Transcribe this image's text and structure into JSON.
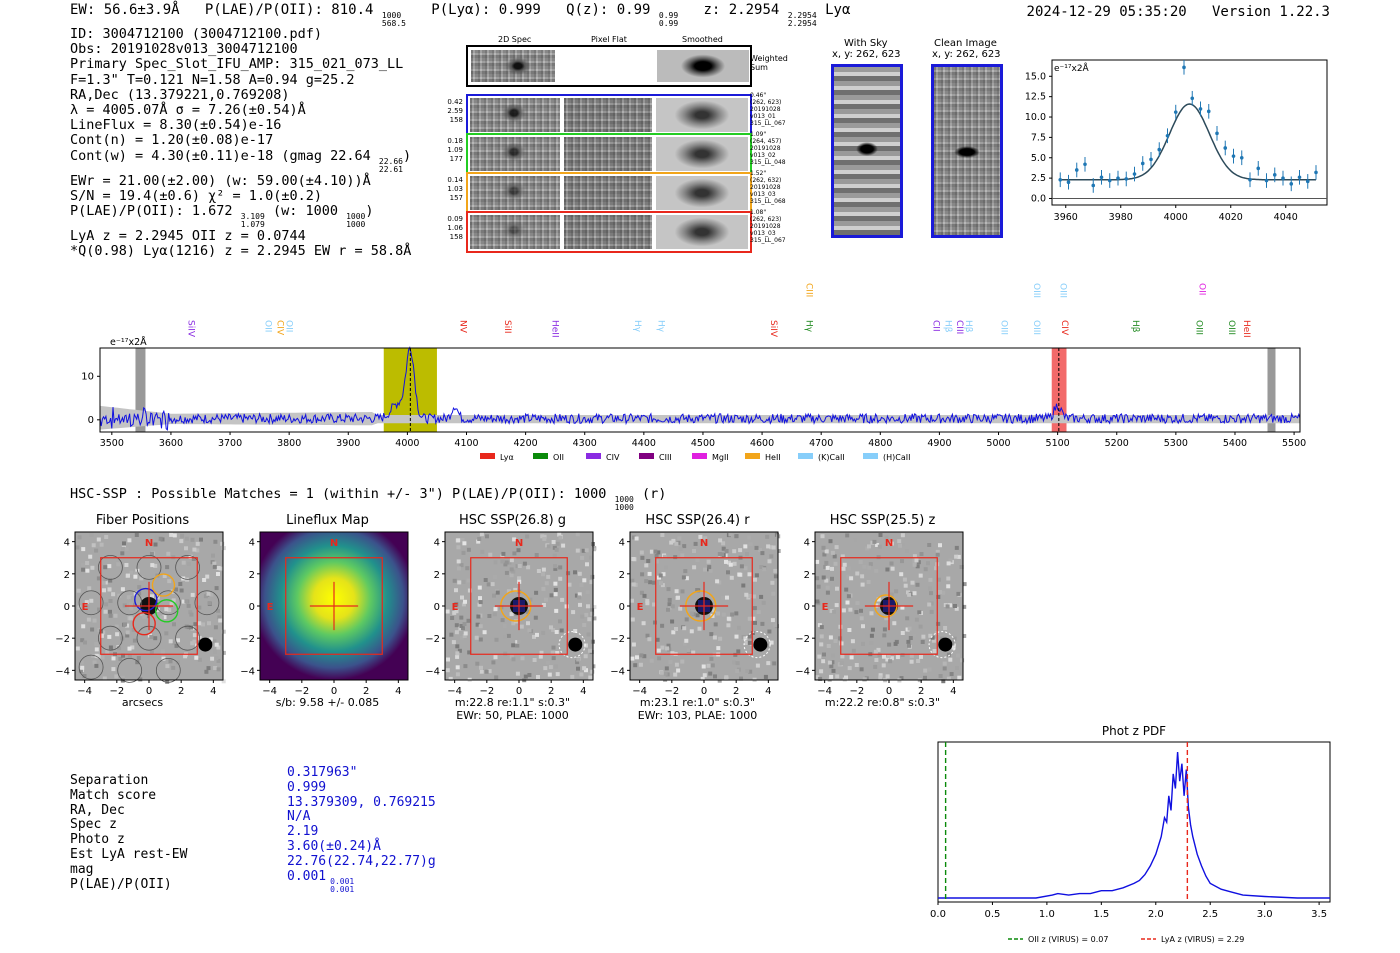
{
  "header": {
    "ew_text": "EW: 56.6±3.9Å",
    "plae_label": "P(LAE)/P(OII): 810.4",
    "plae_hi": "1000",
    "plae_lo": "568.5",
    "plya_text": "P(Lyα): 0.999",
    "qz_label": "Q(z): 0.99",
    "qz_hi": "0.99",
    "qz_lo": "0.99",
    "z_label": "z: 2.2954",
    "z_hi": "2.2954",
    "z_lo": "2.2954",
    "z_line": "Lyα",
    "datetime": "2024-12-29 05:35:20",
    "version": "Version 1.22.3"
  },
  "info": {
    "id": "ID: 3004712100 (3004712100.pdf)",
    "obs": "Obs: 20191028v013_3004712100",
    "primary": "Primary Spec_Slot_IFU_AMP: 315_021_073_LL",
    "params": "F=1.3\"  T=0.121  N=1.58  A=0.94  g=25.2",
    "radec": "RA,Dec (13.379221,0.769208)",
    "lambda": "λ = 4005.07Å  σ = 7.26(±0.54)Å",
    "lineflux": "LineFlux = 8.30(±0.54)e-16",
    "contn": "Cont(n) = 1.20(±0.08)e-17",
    "contw": "Cont(w) = 4.30(±0.11)e-18 (gmag 22.64",
    "contw_hi": "22.66",
    "contw_lo": "22.61",
    "contw_end": ")",
    "ewr": "EWr = 21.00(±2.00) (w: 59.00(±4.10))Å",
    "sn": "S/N = 19.4(±0.6)  χ² = 1.0(±0.2)",
    "plae": "P(LAE)/P(OII): 1.672",
    "plae_hi": "3.109",
    "plae_lo": "1.079",
    "plae_mid": "(w: 1000",
    "plae_w_hi": "1000",
    "plae_w_lo": "1000",
    "plae_end": ")",
    "lya": "LyA z = 2.2945   OII z = 0.0744",
    "q": "*Q(0.98) Lyα(1216) z = 2.2945   EW r = 58.8Å"
  },
  "spec2d": {
    "col_2d": "2D Spec",
    "col_flat": "Pixel Flat",
    "col_smooth": "Smoothed",
    "weighted": "Weighted Sum",
    "rows": [
      {
        "left": [
          "0.42",
          "2.59",
          "158"
        ],
        "right": [
          "0.46\"",
          "(262, 623)",
          "20191028",
          "v013_01",
          "315_LL_067"
        ],
        "color": "#1a1ad8"
      },
      {
        "left": [
          "0.18",
          "1.09",
          "177"
        ],
        "right": [
          "1.09\"",
          "(264, 457)",
          "20191028",
          "v013_02",
          "315_LL_048"
        ],
        "color": "#22cc22"
      },
      {
        "left": [
          "0.14",
          "1.03",
          "157"
        ],
        "right": [
          "1.52\"",
          "(262, 632)",
          "20191028",
          "v013_03",
          "315_LL_068"
        ],
        "color": "#f2a51a"
      },
      {
        "left": [
          "0.09",
          "1.06",
          "158"
        ],
        "right": [
          "1.08\"",
          "(262, 623)",
          "20191028",
          "v013_03",
          "315_LL_067"
        ],
        "color": "#e8281c"
      }
    ]
  },
  "cutouts": {
    "with_sky": "With Sky",
    "with_sky_xy": "x, y: 262, 623",
    "clean": "Clean Image",
    "clean_xy": "x, y: 262, 623"
  },
  "zoom_plot": {
    "unit": "e⁻¹⁷x2Å",
    "xticks": [
      "3960",
      "3980",
      "4000",
      "4020",
      "4040"
    ],
    "yticks": [
      "15.0",
      "12.5",
      "10.0",
      "7.5",
      "5.0",
      "2.5",
      "0.0"
    ],
    "xrange": [
      3955,
      4055
    ],
    "yrange": [
      -0.8,
      17
    ],
    "points_x": [
      3958,
      3961,
      3964,
      3967,
      3970,
      3973,
      3976,
      3979,
      3982,
      3985,
      3988,
      3991,
      3994,
      3997,
      4000,
      4003,
      4006,
      4009,
      4012,
      4015,
      4018,
      4021,
      4024,
      4027,
      4030,
      4033,
      4036,
      4039,
      4042,
      4045,
      4048,
      4051
    ],
    "points_y": [
      2.3,
      2.0,
      3.5,
      4.2,
      1.6,
      2.6,
      2.2,
      2.5,
      2.4,
      3.0,
      4.3,
      4.8,
      6.0,
      7.7,
      10.6,
      16.1,
      12.3,
      11.0,
      10.7,
      8.0,
      6.2,
      5.2,
      5.0,
      2.3,
      3.7,
      2.2,
      2.9,
      2.5,
      1.8,
      2.6,
      2.1,
      3.2
    ],
    "fit": {
      "center": 4005,
      "sigma": 7.26,
      "amp": 9.3,
      "base": 2.3
    }
  },
  "wide_spec": {
    "unit": "e⁻¹⁷x2Å",
    "xticks": [
      "3500",
      "3600",
      "3700",
      "3800",
      "3900",
      "4000",
      "4100",
      "4200",
      "4300",
      "4400",
      "4500",
      "4600",
      "4700",
      "4800",
      "4900",
      "5000",
      "5100",
      "5200",
      "5300",
      "5400",
      "5500"
    ],
    "yticks": [
      "10",
      "0"
    ],
    "xrange": [
      3480,
      5510
    ],
    "yrange": [
      -2.8,
      16.5
    ],
    "highlight": [
      3960,
      4050
    ],
    "ciii_hl": [
      5090,
      5115
    ],
    "lines": [
      {
        "name": "SiIV",
        "wave": 3625,
        "color": "#8a2be2",
        "row": 1
      },
      {
        "name": "OII",
        "wave": 3755,
        "color": "#87cefa",
        "row": 1
      },
      {
        "name": "CIV",
        "wave": 3775,
        "color": "#f2a51a",
        "row": 1
      },
      {
        "name": "OII",
        "wave": 3790,
        "color": "#87cefa",
        "row": 1
      },
      {
        "name": "NV",
        "wave": 4085,
        "color": "#e8281c",
        "row": 1
      },
      {
        "name": "SiII",
        "wave": 4160,
        "color": "#e8281c",
        "row": 1
      },
      {
        "name": "HeII",
        "wave": 4240,
        "color": "#8a2be2",
        "row": 1
      },
      {
        "name": "Hγ",
        "wave": 4380,
        "color": "#87cefa",
        "row": 1
      },
      {
        "name": "Hγ",
        "wave": 4420,
        "color": "#87cefa",
        "row": 1
      },
      {
        "name": "SiIV",
        "wave": 4610,
        "color": "#e8281c",
        "row": 1
      },
      {
        "name": "Hγ",
        "wave": 4670,
        "color": "#228b22",
        "row": 1
      },
      {
        "name": "CIII",
        "wave": 4670,
        "color": "#f2a51a",
        "row": 0
      },
      {
        "name": "CII",
        "wave": 4885,
        "color": "#8a2be2",
        "row": 1
      },
      {
        "name": "Hβ",
        "wave": 4905,
        "color": "#87cefa",
        "row": 1
      },
      {
        "name": "CIII",
        "wave": 4925,
        "color": "#8a2be2",
        "row": 1
      },
      {
        "name": "Hβ",
        "wave": 4940,
        "color": "#87cefa",
        "row": 1
      },
      {
        "name": "OIII",
        "wave": 5000,
        "color": "#87cefa",
        "row": 1
      },
      {
        "name": "OIII",
        "wave": 5055,
        "color": "#87cefa",
        "row": 1
      },
      {
        "name": "OIII",
        "wave": 5055,
        "color": "#87cefa",
        "row": 0
      },
      {
        "name": "OIII",
        "wave": 5100,
        "color": "#87cefa",
        "row": 0
      },
      {
        "name": "CIV",
        "wave": 5102,
        "color": "#e8281c",
        "row": 1
      },
      {
        "name": "Hβ",
        "wave": 5222,
        "color": "#228b22",
        "row": 1
      },
      {
        "name": "OII",
        "wave": 5335,
        "color": "#e020e0",
        "row": 0
      },
      {
        "name": "OIII",
        "wave": 5330,
        "color": "#228b22",
        "row": 1
      },
      {
        "name": "OIII",
        "wave": 5385,
        "color": "#228b22",
        "row": 1
      },
      {
        "name": "HeII",
        "wave": 5410,
        "color": "#e8281c",
        "row": 1
      }
    ],
    "legend": [
      {
        "name": "Lyα",
        "color": "#e8281c"
      },
      {
        "name": "OII",
        "color": "#0a8a0a"
      },
      {
        "name": "CIV",
        "color": "#8a2be2"
      },
      {
        "name": "CIII",
        "color": "#800080"
      },
      {
        "name": "MgII",
        "color": "#e020e0"
      },
      {
        "name": "HeII",
        "color": "#f2a51a"
      },
      {
        "name": "(K)CaII",
        "color": "#87cefa"
      },
      {
        "name": "(H)CaII",
        "color": "#87cefa"
      }
    ]
  },
  "hsc": {
    "title": "HSC-SSP : Possible Matches = 1 (within +/- 3\")  P(LAE)/P(OII): 1000",
    "title_hi": "1000",
    "title_lo": "1000",
    "title_end": "(r)"
  },
  "panels": [
    {
      "title": "Fiber Positions",
      "cap1": "arcsecs",
      "cap2": ""
    },
    {
      "title": "Lineflux Map",
      "cap1": "s/b: 9.58 +/- 0.085",
      "cap2": ""
    },
    {
      "title": "HSC SSP(26.8) g",
      "cap1": "m:22.8  re:1.1\"  s:0.3\"",
      "cap2": "EWr: 50, PLAE: 1000"
    },
    {
      "title": "HSC SSP(26.4) r",
      "cap1": "m:23.1  re:1.0\"  s:0.3\"",
      "cap2": "EWr: 103, PLAE: 1000"
    },
    {
      "title": "HSC SSP(25.5) z",
      "cap1": "m:22.2  re:0.8\"  s:0.3\"",
      "cap2": ""
    }
  ],
  "panel_axis": {
    "yticks": [
      "4",
      "2",
      "0",
      "−2",
      "−4"
    ],
    "xticks": [
      "−4",
      "−2",
      "0",
      "2",
      "4"
    ],
    "north": "N",
    "east": "E"
  },
  "match_table": {
    "labels": [
      "Separation",
      "Match score",
      "RA, Dec",
      "Spec z",
      "Photo z",
      "Est LyA rest-EW",
      "mag",
      "P(LAE)/P(OII)"
    ],
    "values": [
      "0.317963\"",
      "0.999",
      "13.379309, 0.769215",
      "N/A",
      "2.19",
      "3.60(±0.24)Å",
      "22.76(22.74,22.77)g",
      "0.001"
    ],
    "plae_hi": "0.001",
    "plae_lo": "0.001"
  },
  "photz": {
    "title": "Phot z PDF",
    "xticks": [
      "0.0",
      "0.5",
      "1.0",
      "1.5",
      "2.0",
      "2.5",
      "3.0",
      "3.5"
    ],
    "xrange": [
      0,
      3.6
    ],
    "oii_z": 0.07,
    "lya_z": 2.29,
    "legend_oii": "OII z (VIRUS) = 0.07",
    "legend_lya": "LyA z (VIRUS) = 2.29",
    "pdf_x": [
      0.0,
      0.5,
      0.9,
      1.05,
      1.1,
      1.2,
      1.3,
      1.4,
      1.5,
      1.6,
      1.7,
      1.8,
      1.85,
      1.9,
      1.95,
      2.0,
      2.05,
      2.08,
      2.1,
      2.12,
      2.14,
      2.16,
      2.18,
      2.2,
      2.22,
      2.24,
      2.26,
      2.28,
      2.3,
      2.32,
      2.34,
      2.38,
      2.42,
      2.46,
      2.5,
      2.6,
      2.7,
      2.8,
      3.0,
      3.3,
      3.6
    ],
    "pdf_y": [
      0.0,
      0.0,
      0.0,
      0.02,
      0.03,
      0.02,
      0.03,
      0.03,
      0.05,
      0.05,
      0.07,
      0.1,
      0.12,
      0.16,
      0.22,
      0.3,
      0.42,
      0.55,
      0.52,
      0.7,
      0.6,
      0.85,
      0.75,
      1.0,
      0.8,
      0.92,
      0.7,
      0.88,
      0.62,
      0.5,
      0.42,
      0.3,
      0.22,
      0.15,
      0.1,
      0.06,
      0.04,
      0.02,
      0.01,
      0.0,
      0.0
    ]
  }
}
